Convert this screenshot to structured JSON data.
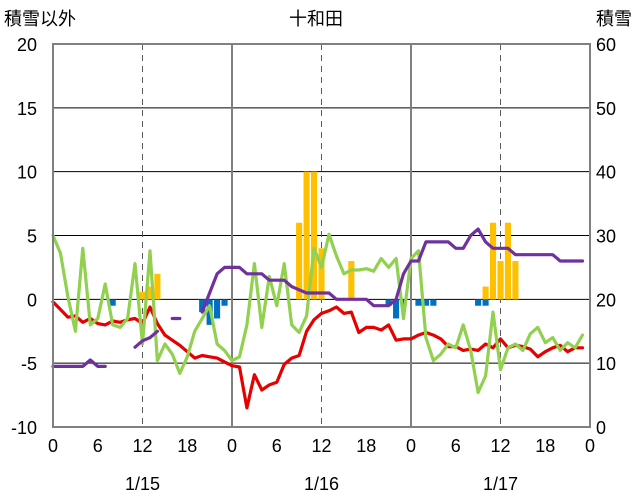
{
  "chart_data": {
    "type": "line",
    "title": "十和田",
    "ylabel_left": "積雪以外",
    "ylabel_right": "積雪",
    "ylim_left": [
      -10,
      20
    ],
    "ylim_right": [
      0,
      60
    ],
    "yticks_left": [
      20,
      15,
      10,
      5,
      0,
      -5,
      -10
    ],
    "yticks_right": [
      60,
      50,
      40,
      30,
      20,
      10,
      0
    ],
    "x_range_hours": [
      0,
      72
    ],
    "x_tick_labels": [
      "0",
      "6",
      "12",
      "18",
      "0",
      "6",
      "12",
      "18",
      "0",
      "6",
      "12",
      "18",
      "0"
    ],
    "date_labels": [
      "1/15",
      "1/16",
      "1/17"
    ],
    "colors": {
      "red": "#e60000",
      "green": "#92d050",
      "purple": "#7030a0",
      "orange_bar": "#ffc000",
      "blue_bar": "#0070c0",
      "grid": "#000000",
      "frame": "#808080"
    },
    "bars_positive": [
      {
        "x": 12,
        "y": 0.6
      },
      {
        "x": 13,
        "y": 1.0
      },
      {
        "x": 14,
        "y": 2.0
      },
      {
        "x": 33,
        "y": 6.0
      },
      {
        "x": 34,
        "y": 10.0
      },
      {
        "x": 35,
        "y": 10.0
      },
      {
        "x": 36,
        "y": 4.0
      },
      {
        "x": 40,
        "y": 3.0
      },
      {
        "x": 58,
        "y": 1.0
      },
      {
        "x": 59,
        "y": 6.0
      },
      {
        "x": 60,
        "y": 3.0
      },
      {
        "x": 61,
        "y": 6.0
      },
      {
        "x": 62,
        "y": 3.0
      }
    ],
    "bars_negative": [
      {
        "x": 8,
        "y": -0.5
      },
      {
        "x": 20,
        "y": -1.0
      },
      {
        "x": 21,
        "y": -2.0
      },
      {
        "x": 22,
        "y": -1.5
      },
      {
        "x": 23,
        "y": -0.5
      },
      {
        "x": 45,
        "y": -0.5
      },
      {
        "x": 46,
        "y": -1.5
      },
      {
        "x": 47,
        "y": -0.5
      },
      {
        "x": 49,
        "y": -0.5
      },
      {
        "x": 50,
        "y": -0.5
      },
      {
        "x": 51,
        "y": -0.5
      },
      {
        "x": 57,
        "y": -0.5
      },
      {
        "x": 58,
        "y": -0.5
      }
    ],
    "series": [
      {
        "color": "red",
        "axis": "left",
        "points": [
          [
            0,
            -0.2
          ],
          [
            1,
            -0.8
          ],
          [
            2,
            -1.4
          ],
          [
            3,
            -1.3
          ],
          [
            4,
            -1.8
          ],
          [
            5,
            -1.5
          ],
          [
            6,
            -1.9
          ],
          [
            7,
            -2.0
          ],
          [
            8,
            -1.7
          ],
          [
            9,
            -1.8
          ],
          [
            10,
            -1.6
          ],
          [
            11,
            -1.5
          ],
          [
            12,
            -1.9
          ],
          [
            13,
            -0.6
          ],
          [
            14,
            -1.9
          ],
          [
            15,
            -2.8
          ],
          [
            16,
            -3.2
          ],
          [
            17,
            -3.6
          ],
          [
            18,
            -4.1
          ],
          [
            19,
            -4.6
          ],
          [
            20,
            -4.4
          ],
          [
            21,
            -4.5
          ],
          [
            22,
            -4.6
          ],
          [
            23,
            -4.9
          ],
          [
            24,
            -5.2
          ],
          [
            25,
            -5.3
          ],
          [
            26,
            -8.5
          ],
          [
            27,
            -5.9
          ],
          [
            28,
            -7.1
          ],
          [
            29,
            -6.7
          ],
          [
            30,
            -6.5
          ],
          [
            31,
            -5.1
          ],
          [
            32,
            -4.6
          ],
          [
            33,
            -4.4
          ],
          [
            34,
            -2.5
          ],
          [
            35,
            -1.6
          ],
          [
            36,
            -1.1
          ],
          [
            37,
            -0.9
          ],
          [
            38,
            -0.6
          ],
          [
            39,
            -1.1
          ],
          [
            40,
            -1.0
          ],
          [
            41,
            -2.6
          ],
          [
            42,
            -2.2
          ],
          [
            43,
            -2.2
          ],
          [
            44,
            -2.4
          ],
          [
            45,
            -2.0
          ],
          [
            46,
            -3.2
          ],
          [
            47,
            -3.1
          ],
          [
            48,
            -3.1
          ],
          [
            49,
            -2.8
          ],
          [
            50,
            -2.6
          ],
          [
            51,
            -2.8
          ],
          [
            52,
            -3.1
          ],
          [
            53,
            -3.7
          ],
          [
            54,
            -3.7
          ],
          [
            55,
            -4.0
          ],
          [
            56,
            -3.9
          ],
          [
            57,
            -4.0
          ],
          [
            58,
            -3.5
          ],
          [
            59,
            -3.8
          ],
          [
            60,
            -3.1
          ],
          [
            61,
            -3.8
          ],
          [
            62,
            -3.6
          ],
          [
            63,
            -3.7
          ],
          [
            64,
            -3.9
          ],
          [
            65,
            -4.5
          ],
          [
            66,
            -4.1
          ],
          [
            67,
            -3.8
          ],
          [
            68,
            -3.6
          ],
          [
            69,
            -4.1
          ],
          [
            70,
            -3.8
          ],
          [
            71,
            -3.8
          ]
        ]
      },
      {
        "color": "green",
        "axis": "left",
        "points": [
          [
            0,
            5.0
          ],
          [
            1,
            3.6
          ],
          [
            2,
            0.2
          ],
          [
            3,
            -2.5
          ],
          [
            4,
            4.0
          ],
          [
            5,
            -2.0
          ],
          [
            6,
            -1.5
          ],
          [
            7,
            1.2
          ],
          [
            8,
            -2.0
          ],
          [
            9,
            -2.2
          ],
          [
            10,
            -1.5
          ],
          [
            11,
            2.8
          ],
          [
            12,
            -3.5
          ],
          [
            13,
            3.8
          ],
          [
            14,
            -4.8
          ],
          [
            15,
            -3.5
          ],
          [
            16,
            -4.3
          ],
          [
            17,
            -5.8
          ],
          [
            18,
            -4.5
          ],
          [
            19,
            -2.5
          ],
          [
            20,
            -1.5
          ],
          [
            21,
            -0.5
          ],
          [
            22,
            -3.5
          ],
          [
            23,
            -4.0
          ],
          [
            24,
            -4.8
          ],
          [
            25,
            -4.5
          ],
          [
            26,
            -2.0
          ],
          [
            27,
            2.8
          ],
          [
            28,
            -2.2
          ],
          [
            29,
            1.8
          ],
          [
            30,
            -0.5
          ],
          [
            31,
            2.8
          ],
          [
            32,
            -2.0
          ],
          [
            33,
            -2.6
          ],
          [
            34,
            -1.3
          ],
          [
            35,
            4.0
          ],
          [
            36,
            2.5
          ],
          [
            37,
            5.1
          ],
          [
            38,
            3.4
          ],
          [
            39,
            2.0
          ],
          [
            40,
            2.3
          ],
          [
            41,
            2.3
          ],
          [
            42,
            2.4
          ],
          [
            43,
            2.2
          ],
          [
            44,
            3.2
          ],
          [
            45,
            2.5
          ],
          [
            46,
            3.2
          ],
          [
            47,
            -1.5
          ],
          [
            48,
            3.2
          ],
          [
            49,
            3.8
          ],
          [
            50,
            -3.0
          ],
          [
            51,
            -4.8
          ],
          [
            52,
            -4.3
          ],
          [
            53,
            -3.5
          ],
          [
            54,
            -3.8
          ],
          [
            55,
            -2.0
          ],
          [
            56,
            -4.0
          ],
          [
            57,
            -7.3
          ],
          [
            58,
            -6.0
          ],
          [
            59,
            -1.0
          ],
          [
            60,
            -5.5
          ],
          [
            61,
            -3.8
          ],
          [
            62,
            -3.5
          ],
          [
            63,
            -4.0
          ],
          [
            64,
            -2.7
          ],
          [
            65,
            -2.2
          ],
          [
            66,
            -3.4
          ],
          [
            67,
            -3.0
          ],
          [
            68,
            -4.0
          ],
          [
            69,
            -3.4
          ],
          [
            70,
            -3.8
          ],
          [
            71,
            -2.8
          ]
        ]
      },
      {
        "color": "purple",
        "axis": "right",
        "segments": [
          [
            [
              0,
              9.5
            ],
            [
              1,
              9.5
            ],
            [
              2,
              9.5
            ],
            [
              3,
              9.5
            ],
            [
              4,
              9.5
            ],
            [
              5,
              10.5
            ],
            [
              6,
              9.5
            ],
            [
              7,
              9.5
            ]
          ],
          [
            [
              11,
              12.5
            ],
            [
              12,
              13.5
            ],
            [
              13,
              14.0
            ],
            [
              14,
              15.0
            ]
          ],
          [
            [
              16,
              17.0
            ],
            [
              17,
              17.0
            ]
          ],
          [
            [
              20,
              18.0
            ],
            [
              21,
              21.0
            ],
            [
              22,
              24.0
            ],
            [
              23,
              25.0
            ],
            [
              24,
              25.0
            ],
            [
              25,
              25.0
            ],
            [
              26,
              24.0
            ],
            [
              27,
              24.0
            ],
            [
              28,
              24.0
            ],
            [
              29,
              23.0
            ],
            [
              30,
              23.0
            ],
            [
              31,
              23.0
            ],
            [
              32,
              22.0
            ],
            [
              33,
              21.5
            ],
            [
              34,
              21.0
            ],
            [
              35,
              21.0
            ],
            [
              36,
              21.0
            ],
            [
              37,
              21.0
            ],
            [
              38,
              20.0
            ],
            [
              39,
              20.0
            ],
            [
              40,
              20.0
            ],
            [
              41,
              20.0
            ],
            [
              42,
              20.0
            ],
            [
              43,
              19.0
            ],
            [
              44,
              19.0
            ],
            [
              45,
              19.0
            ],
            [
              46,
              20.0
            ],
            [
              47,
              24.0
            ],
            [
              48,
              26.0
            ],
            [
              49,
              26.0
            ],
            [
              50,
              29.0
            ],
            [
              51,
              29.0
            ],
            [
              52,
              29.0
            ],
            [
              53,
              29.0
            ],
            [
              54,
              28.0
            ],
            [
              55,
              28.0
            ],
            [
              56,
              30.0
            ],
            [
              57,
              31.0
            ],
            [
              58,
              29.0
            ],
            [
              59,
              28.0
            ],
            [
              60,
              28.0
            ],
            [
              61,
              28.0
            ],
            [
              62,
              27.0
            ],
            [
              63,
              27.0
            ],
            [
              64,
              27.0
            ],
            [
              65,
              27.0
            ],
            [
              66,
              27.0
            ],
            [
              67,
              27.0
            ],
            [
              68,
              26.0
            ],
            [
              69,
              26.0
            ],
            [
              70,
              26.0
            ],
            [
              71,
              26.0
            ]
          ]
        ]
      }
    ]
  }
}
